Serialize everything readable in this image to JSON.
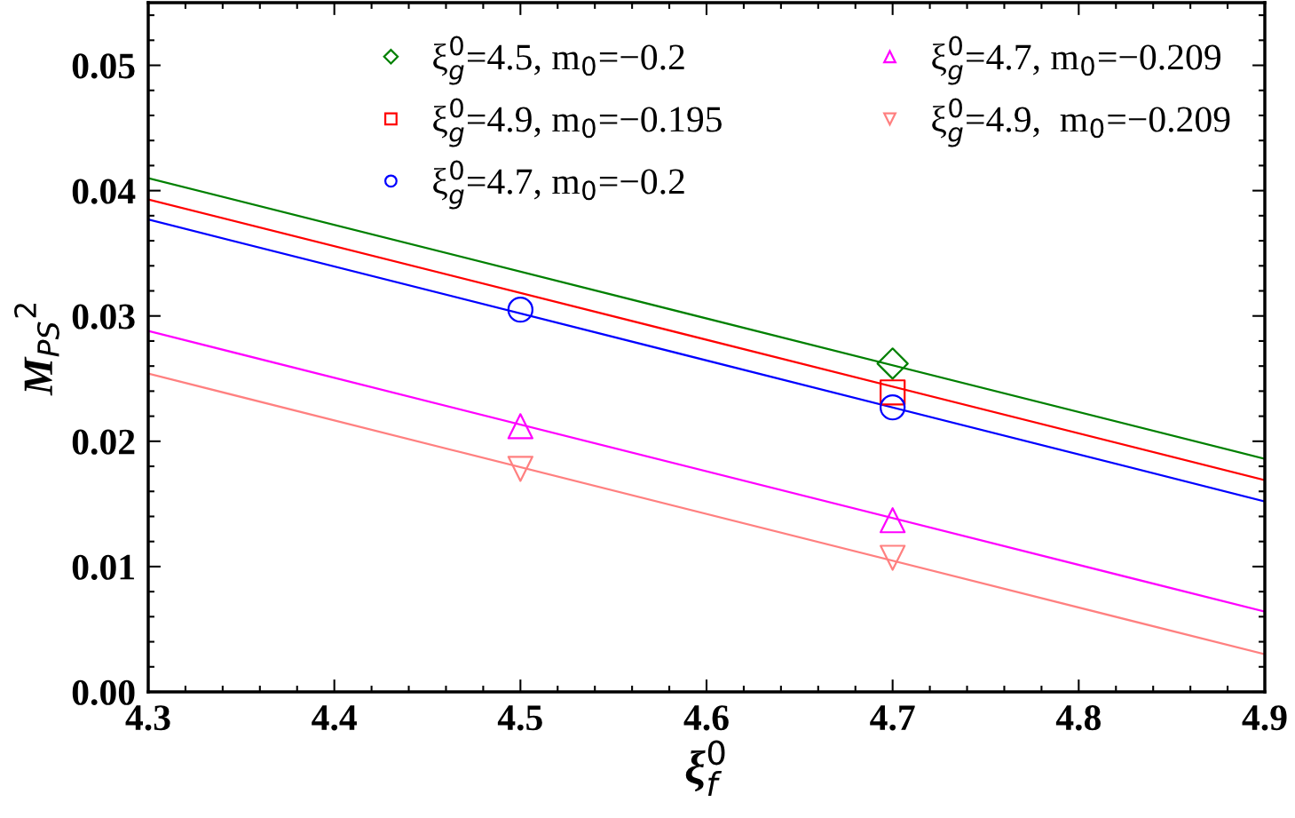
{
  "chart_data": {
    "type": "scatter",
    "xlabel": "ξ$^{0}$$_{f}$",
    "ylabel": "M$_{PS}$$^{2}$",
    "xlim": [
      4.3,
      4.9
    ],
    "xticks": [
      4.3,
      4.4,
      4.5,
      4.6,
      4.7,
      4.8,
      4.9
    ],
    "ylim": [
      0,
      0.055
    ],
    "yticks": [
      {
        "value": 0,
        "label": "0.00"
      },
      0.01,
      0.02,
      0.03,
      0.04,
      0.05
    ],
    "grid": false,
    "legend": "top right",
    "series": [
      {
        "name": "ξ$^{0}$$_{g}$=4.5, m$_{0}$=−0.2",
        "color": "#008000",
        "marker": "diamond",
        "x": [
          4.7
        ],
        "values": [
          0.0262
        ]
      },
      {
        "name": "ξ$^{0}$$_{g}$=4.9, m$_{0}$=−0.195",
        "color": "#ff0000",
        "marker": "square",
        "x": [
          4.7
        ],
        "values": [
          0.0239
        ]
      },
      {
        "name": "ξ$^{0}$$_{g}$=4.7, m$_{0}$=−0.2",
        "color": "#0000ff",
        "marker": "circle",
        "x": [
          4.5,
          4.7
        ],
        "values": [
          0.0305,
          0.0227
        ]
      },
      {
        "name": "ξ$^{0}$$_{g}$=4.7, m$_{0}$=−0.209",
        "color": "#ff00ff",
        "marker": "triangle",
        "x": [
          4.5,
          4.7
        ],
        "values": [
          0.0212,
          0.0137
        ]
      },
      {
        "name": "ξ$^{0}$$_{g}$=4.9,  m$_{0}$=−0.209",
        "color": "#ff8080",
        "marker": "triangle_down",
        "x": [
          4.5,
          4.7
        ],
        "values": [
          0.0178,
          0.0107
        ]
      },
      {
        "type": "line",
        "color": "#008000",
        "x": [
          4.3,
          4.9
        ],
        "values": [
          0.041,
          0.0186
        ]
      },
      {
        "type": "line",
        "color": "#ff0000",
        "x": [
          4.3,
          4.9
        ],
        "values": [
          0.0393,
          0.0169
        ]
      },
      {
        "type": "line",
        "color": "#0000ff",
        "x": [
          4.3,
          4.9
        ],
        "values": [
          0.0377,
          0.0152
        ]
      },
      {
        "type": "line",
        "color": "#ff00ff",
        "x": [
          4.3,
          4.9
        ],
        "values": [
          0.0288,
          0.0064
        ]
      },
      {
        "type": "line",
        "color": "#ff8080",
        "x": [
          4.3,
          4.9
        ],
        "values": [
          0.0254,
          0.003
        ]
      }
    ]
  }
}
